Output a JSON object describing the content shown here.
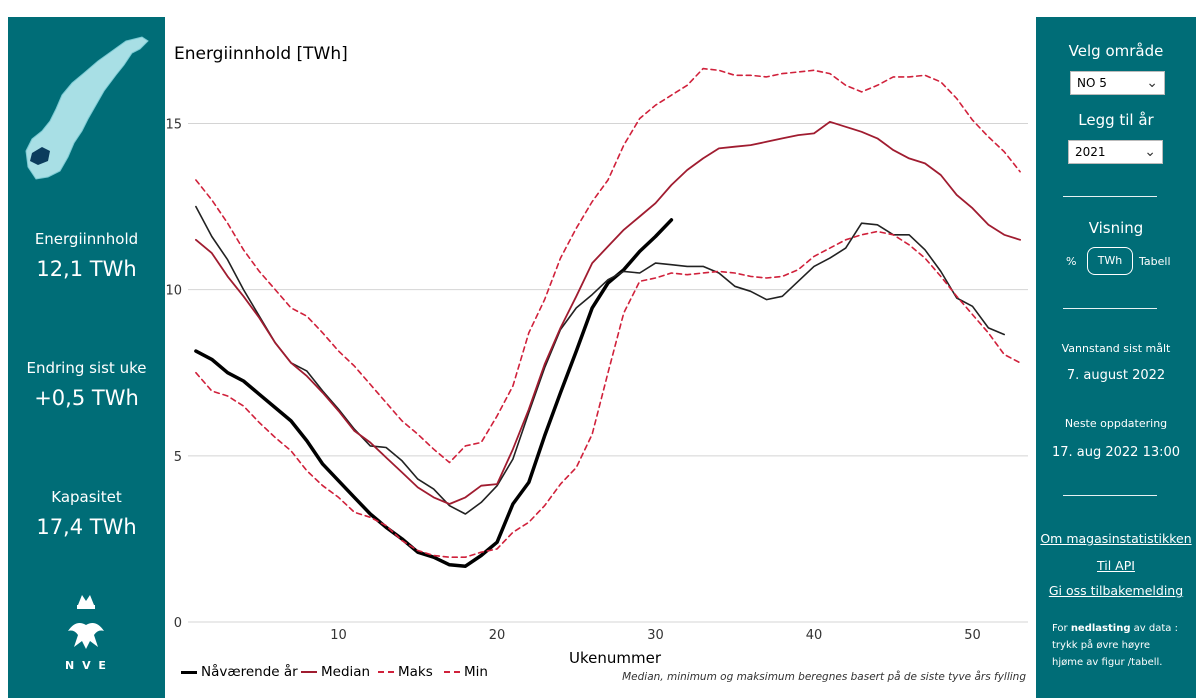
{
  "left": {
    "stats": [
      {
        "label": "Energiinnhold",
        "value": "12,1 TWh"
      },
      {
        "label": "Endring sist uke",
        "value": "+0,5 TWh"
      },
      {
        "label": "Kapasitet",
        "value": "17,4 TWh"
      }
    ],
    "logo_text": "N V E"
  },
  "right": {
    "area_label": "Velg område",
    "area_value": "NO 5",
    "year_label": "Legg til år",
    "year_value": "2021",
    "view_label": "Visning",
    "view_options": [
      "%",
      "TWh",
      "Tabell"
    ],
    "measured_label": "Vannstand sist målt",
    "measured_value": "7. august 2022",
    "next_label": "Neste oppdatering",
    "next_value": "17. aug 2022 13:00",
    "links": [
      "Om magasinstatistikken",
      "Til API",
      "Gi oss tilbakemelding"
    ],
    "download_prefix": "For ",
    "download_bold": "nedlasting",
    "download_suffix": " av data : trykk på øvre høyre hjøme av figur /tabell."
  },
  "chart_data": {
    "type": "line",
    "title": "Energiinnhold [TWh]",
    "xlabel": "Ukenummer",
    "ylabel": "",
    "xlim": [
      0.5,
      53.5
    ],
    "ylim": [
      0,
      17
    ],
    "xticks": [
      10,
      20,
      30,
      40,
      50
    ],
    "yticks": [
      0,
      5,
      10,
      15
    ],
    "grid": "horizontal",
    "legend_position": "bottom-left",
    "footnote": "Median, minimum og maksimum beregnes basert på de siste tyve års fylling",
    "series": [
      {
        "name": "Nåværende år",
        "color": "#000000",
        "style": "solid-thick",
        "x": [
          1,
          2,
          3,
          4,
          5,
          6,
          7,
          8,
          9,
          10,
          11,
          12,
          13,
          14,
          15,
          16,
          17,
          18,
          19,
          20,
          21,
          22,
          23,
          24,
          25,
          26,
          27,
          28,
          29,
          30,
          31
        ],
        "values": [
          8.15,
          7.9,
          7.5,
          7.25,
          6.85,
          6.45,
          6.05,
          5.45,
          4.75,
          4.25,
          3.75,
          3.25,
          2.85,
          2.5,
          2.1,
          1.95,
          1.72,
          1.68,
          2.0,
          2.4,
          3.55,
          4.2,
          5.6,
          6.9,
          8.15,
          9.45,
          10.2,
          10.6,
          11.15,
          11.6,
          12.1
        ]
      },
      {
        "name": "2021",
        "color": "#222222",
        "style": "solid-thin",
        "x": [
          1,
          2,
          3,
          4,
          5,
          6,
          7,
          8,
          9,
          10,
          11,
          12,
          13,
          14,
          15,
          16,
          17,
          18,
          19,
          20,
          21,
          22,
          23,
          24,
          25,
          26,
          27,
          28,
          29,
          30,
          31,
          32,
          33,
          34,
          35,
          36,
          37,
          38,
          39,
          40,
          41,
          42,
          43,
          44,
          45,
          46,
          47,
          48,
          49,
          50,
          51,
          52
        ],
        "values": [
          12.5,
          11.6,
          10.9,
          10.0,
          9.2,
          8.4,
          7.8,
          7.55,
          6.95,
          6.4,
          5.8,
          5.3,
          5.25,
          4.85,
          4.3,
          4.0,
          3.5,
          3.25,
          3.6,
          4.1,
          4.9,
          6.3,
          7.65,
          8.8,
          9.45,
          9.85,
          10.3,
          10.55,
          10.5,
          10.8,
          10.75,
          10.7,
          10.7,
          10.5,
          10.1,
          9.95,
          9.7,
          9.8,
          10.25,
          10.7,
          10.95,
          11.25,
          12.0,
          11.95,
          11.65,
          11.65,
          11.2,
          10.55,
          9.75,
          9.5,
          8.85,
          8.65
        ]
      },
      {
        "name": "Median",
        "color": "#a01c30",
        "style": "solid",
        "x": [
          1,
          2,
          3,
          4,
          5,
          6,
          7,
          8,
          9,
          10,
          11,
          12,
          13,
          14,
          15,
          16,
          17,
          18,
          19,
          20,
          21,
          22,
          23,
          24,
          25,
          26,
          27,
          28,
          29,
          30,
          31,
          32,
          33,
          34,
          35,
          36,
          37,
          38,
          39,
          40,
          41,
          42,
          43,
          44,
          45,
          46,
          47,
          48,
          49,
          50,
          51,
          52,
          53
        ],
        "values": [
          11.5,
          11.1,
          10.4,
          9.8,
          9.15,
          8.4,
          7.8,
          7.4,
          6.9,
          6.35,
          5.75,
          5.4,
          4.95,
          4.5,
          4.05,
          3.75,
          3.55,
          3.75,
          4.1,
          4.15,
          5.2,
          6.4,
          7.75,
          8.85,
          9.8,
          10.8,
          11.3,
          11.8,
          12.2,
          12.6,
          13.15,
          13.6,
          13.95,
          14.25,
          14.3,
          14.35,
          14.45,
          14.55,
          14.65,
          14.7,
          15.05,
          14.9,
          14.75,
          14.55,
          14.2,
          13.95,
          13.8,
          13.45,
          12.85,
          12.45,
          11.95,
          11.65,
          11.5
        ]
      },
      {
        "name": "Maks",
        "color": "#d0213b",
        "style": "dashed",
        "x": [
          1,
          2,
          3,
          4,
          5,
          6,
          7,
          8,
          9,
          10,
          11,
          12,
          13,
          14,
          15,
          16,
          17,
          18,
          19,
          20,
          21,
          22,
          23,
          24,
          25,
          26,
          27,
          28,
          29,
          30,
          31,
          32,
          33,
          34,
          35,
          36,
          37,
          38,
          39,
          40,
          41,
          42,
          43,
          44,
          45,
          46,
          47,
          48,
          49,
          50,
          51,
          52,
          53
        ],
        "values": [
          13.3,
          12.7,
          12.0,
          11.2,
          10.55,
          10.0,
          9.45,
          9.2,
          8.7,
          8.15,
          7.7,
          7.15,
          6.6,
          6.05,
          5.65,
          5.2,
          4.8,
          5.3,
          5.4,
          6.2,
          7.1,
          8.7,
          9.7,
          10.95,
          11.85,
          12.65,
          13.3,
          14.35,
          15.15,
          15.55,
          15.85,
          16.15,
          16.65,
          16.6,
          16.45,
          16.45,
          16.4,
          16.5,
          16.55,
          16.6,
          16.5,
          16.15,
          15.95,
          16.15,
          16.4,
          16.4,
          16.45,
          16.25,
          15.75,
          15.1,
          14.6,
          14.15,
          13.55
        ]
      },
      {
        "name": "Min",
        "color": "#d0213b",
        "style": "dashed",
        "x": [
          1,
          2,
          3,
          4,
          5,
          6,
          7,
          8,
          9,
          10,
          11,
          12,
          13,
          14,
          15,
          16,
          17,
          18,
          19,
          20,
          21,
          22,
          23,
          24,
          25,
          26,
          27,
          28,
          29,
          30,
          31,
          32,
          33,
          34,
          35,
          36,
          37,
          38,
          39,
          40,
          41,
          42,
          43,
          44,
          45,
          46,
          47,
          48,
          49,
          50,
          51,
          52,
          53
        ],
        "values": [
          7.5,
          6.95,
          6.8,
          6.5,
          6.0,
          5.55,
          5.15,
          4.55,
          4.1,
          3.75,
          3.3,
          3.15,
          2.9,
          2.45,
          2.15,
          2.0,
          1.95,
          1.95,
          2.1,
          2.2,
          2.7,
          3.0,
          3.5,
          4.15,
          4.65,
          5.65,
          7.5,
          9.3,
          10.25,
          10.35,
          10.5,
          10.45,
          10.5,
          10.55,
          10.5,
          10.4,
          10.35,
          10.4,
          10.6,
          11.0,
          11.25,
          11.5,
          11.65,
          11.75,
          11.65,
          11.35,
          10.95,
          10.4,
          9.8,
          9.25,
          8.7,
          8.05,
          7.8
        ]
      }
    ],
    "legend": [
      {
        "label": "Nåværende år",
        "color": "#000000",
        "style": "solid-thick"
      },
      {
        "label": "Median",
        "color": "#a01c30",
        "style": "solid"
      },
      {
        "label": "Maks",
        "color": "#d0213b",
        "style": "dashed"
      },
      {
        "label": "Min",
        "color": "#d0213b",
        "style": "dashed"
      }
    ]
  }
}
